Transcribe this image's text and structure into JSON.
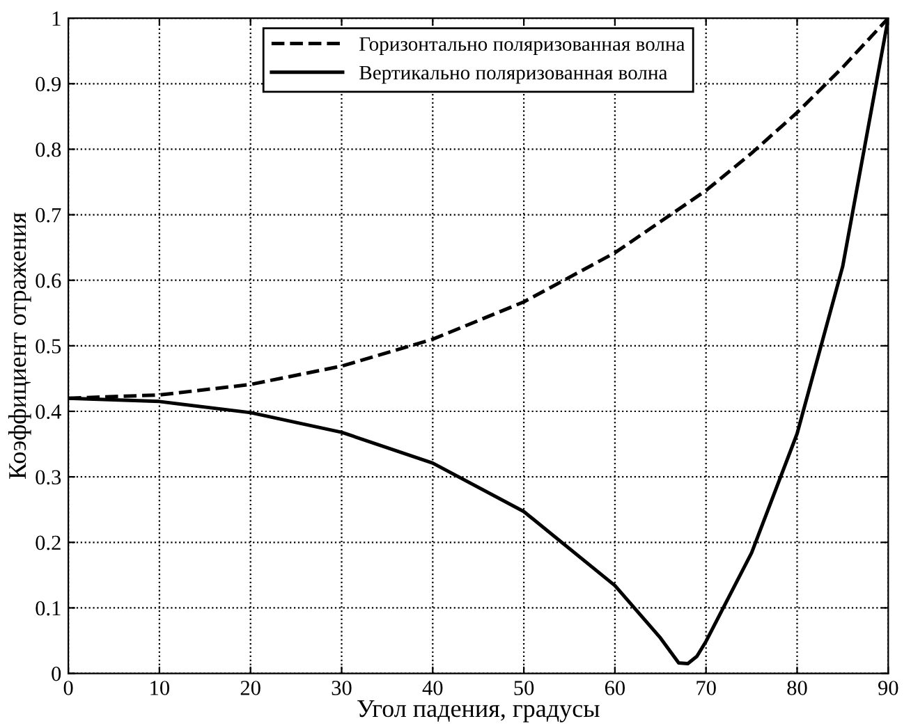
{
  "chart_data": {
    "type": "line",
    "xlabel": "Угол падения, градусы",
    "ylabel": "Коэффициент отражения",
    "xlim": [
      0,
      90
    ],
    "ylim": [
      0,
      1
    ],
    "xticks": [
      0,
      10,
      20,
      30,
      40,
      50,
      60,
      70,
      80,
      90
    ],
    "yticks": [
      0,
      0.1,
      0.2,
      0.3,
      0.4,
      0.5,
      0.6,
      0.7,
      0.8,
      0.9,
      1
    ],
    "grid": true,
    "legend": "top",
    "marker": "none",
    "series": [
      {
        "name": "Горизонтально поляризованная волна",
        "color": "#000000",
        "line_style": "dashed",
        "x": [
          0,
          10,
          20,
          30,
          40,
          50,
          60,
          70,
          75,
          80,
          85,
          90
        ],
        "values": [
          0.42,
          0.425,
          0.441,
          0.469,
          0.51,
          0.567,
          0.642,
          0.737,
          0.794,
          0.856,
          0.925,
          1
        ]
      },
      {
        "name": "Вертикально поляризованная волна",
        "color": "#000000",
        "line_style": "solid",
        "x": [
          0,
          10,
          20,
          30,
          40,
          50,
          60,
          65,
          67,
          68,
          69,
          70,
          75,
          80,
          85,
          90
        ],
        "values": [
          0.42,
          0.415,
          0.398,
          0.368,
          0.321,
          0.247,
          0.134,
          0.054,
          0.016,
          0.015,
          0.026,
          0.049,
          0.184,
          0.366,
          0.621,
          1
        ]
      }
    ]
  }
}
